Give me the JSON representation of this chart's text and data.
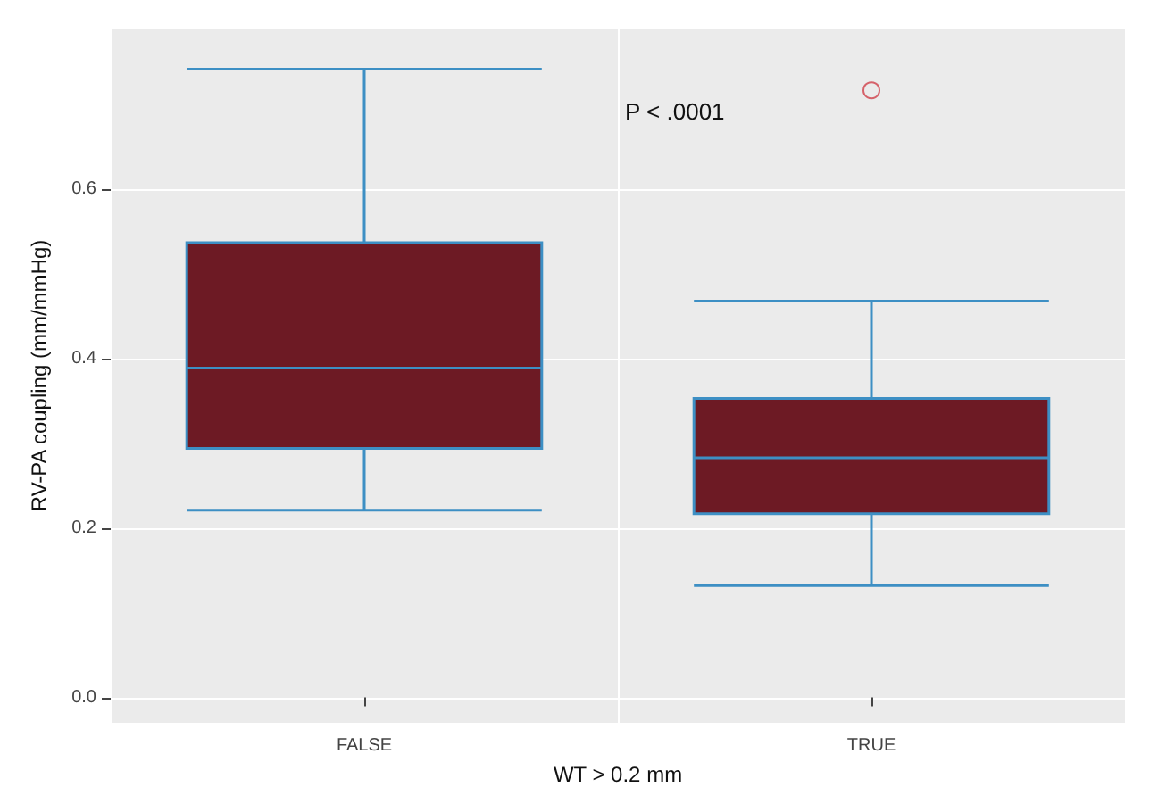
{
  "chart_data": {
    "type": "box",
    "xlabel": "WT > 0.2 mm",
    "ylabel": "RV-PA coupling (mm/mmHg)",
    "categories": [
      "FALSE",
      "TRUE"
    ],
    "boxes": [
      {
        "low": 0.221,
        "q1": 0.294,
        "median": 0.389,
        "q3": 0.537,
        "high": 0.742
      },
      {
        "low": 0.132,
        "q1": 0.217,
        "median": 0.283,
        "q3": 0.353,
        "high": 0.468,
        "outliers": [
          0.717
        ]
      }
    ],
    "color": "#6d1a24",
    "ylim": [
      -0.03,
      0.79
    ],
    "yticks": [
      {
        "value": 0,
        "label": "0.0"
      },
      {
        "value": 0.2,
        "label": "0.2"
      },
      {
        "value": 0.4,
        "label": "0.4"
      },
      {
        "value": 0.6,
        "label": "0.6"
      }
    ],
    "grid": true,
    "annotations": [
      "P < .0001"
    ]
  }
}
